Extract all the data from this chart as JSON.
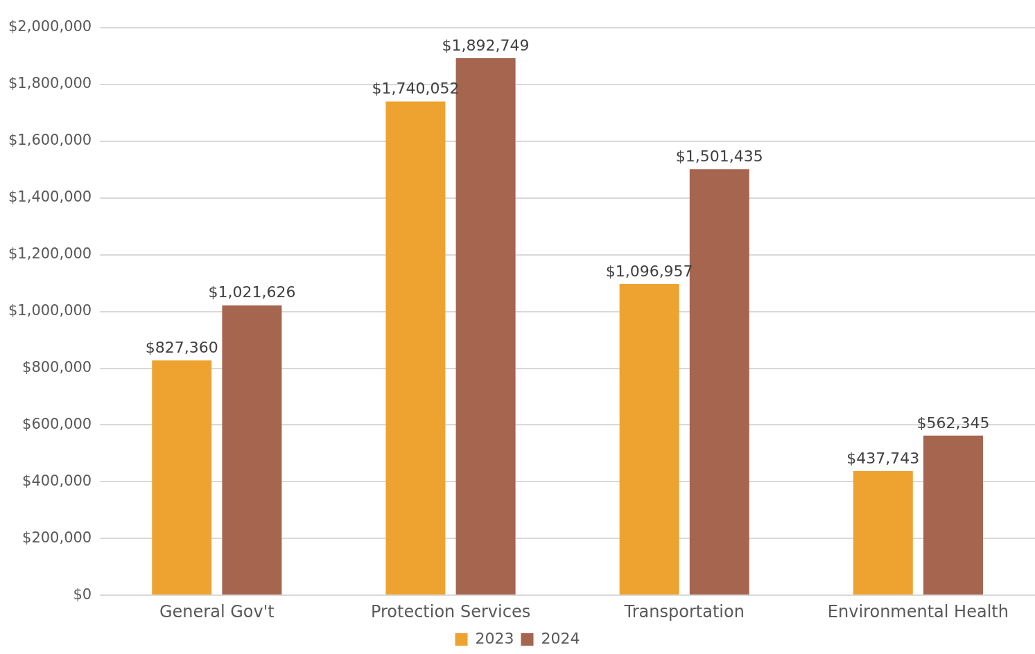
{
  "chart_data": {
    "type": "bar",
    "categories": [
      "General Gov't",
      "Protection Services",
      "Transportation",
      "Environmental Health"
    ],
    "series": [
      {
        "name": "2023",
        "color": "#eea331",
        "values": [
          827360,
          1740052,
          1096957,
          437743
        ],
        "value_labels": [
          "$827,360",
          "$1,740,052",
          "$1,096,957",
          "$437,743"
        ]
      },
      {
        "name": "2024",
        "color": "#a5654e",
        "values": [
          1021626,
          1892749,
          1501435,
          562345
        ],
        "value_labels": [
          "$1,021,626",
          "$1,892,749",
          "$1,501,435",
          "$562,345"
        ]
      }
    ],
    "ylim": [
      0,
      2000000
    ],
    "yticks": [
      {
        "value": 0,
        "label": "$0"
      },
      {
        "value": 200000,
        "label": "$200,000"
      },
      {
        "value": 400000,
        "label": "$400,000"
      },
      {
        "value": 600000,
        "label": "$600,000"
      },
      {
        "value": 800000,
        "label": "$800,000"
      },
      {
        "value": 1000000,
        "label": "$1,000,000"
      },
      {
        "value": 1200000,
        "label": "$1,200,000"
      },
      {
        "value": 1400000,
        "label": "$1,400,000"
      },
      {
        "value": 1600000,
        "label": "$1,600,000"
      },
      {
        "value": 1800000,
        "label": "$1,800,000"
      },
      {
        "value": 2000000,
        "label": "$2,000,000"
      }
    ],
    "grid": "y",
    "legend": "bottom"
  }
}
